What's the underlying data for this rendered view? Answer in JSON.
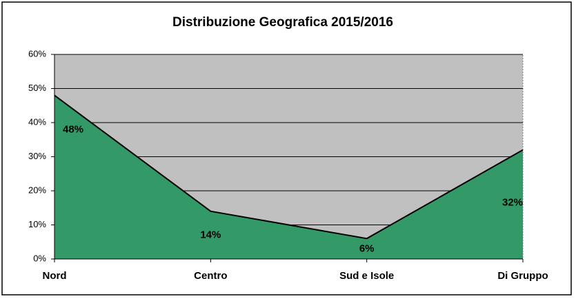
{
  "chart_data": {
    "type": "area",
    "title": "Distribuzione Geografica 2015/2016",
    "categories": [
      "Nord",
      "Centro",
      "Sud e Isole",
      "Di Gruppo"
    ],
    "values": [
      48,
      14,
      6,
      32
    ],
    "value_labels": [
      "48%",
      "14%",
      "6%",
      "32%"
    ],
    "color": "#339966",
    "background": "#c0c0c0",
    "ylim": [
      0,
      60
    ],
    "yticks": [
      {
        "value": 0,
        "label": "0%"
      },
      {
        "value": 10,
        "label": "10%"
      },
      {
        "value": 20,
        "label": "20%"
      },
      {
        "value": 30,
        "label": "30%"
      },
      {
        "value": 40,
        "label": "40%"
      },
      {
        "value": 50,
        "label": "50%"
      },
      {
        "value": 60,
        "label": "60%"
      }
    ],
    "grid": true
  }
}
